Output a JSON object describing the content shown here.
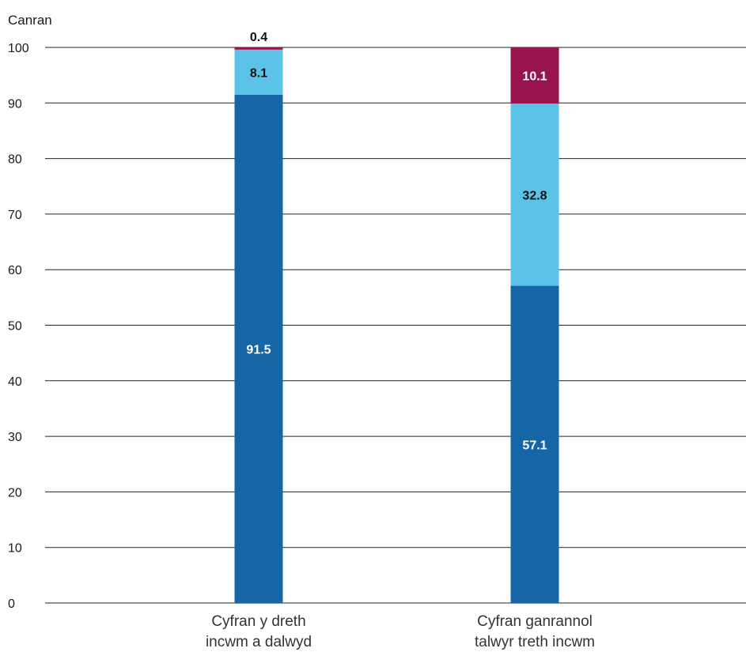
{
  "chart_data": {
    "type": "bar",
    "stacked": true,
    "ylabel": "Canran",
    "xlabel": "",
    "ylim": [
      0,
      100
    ],
    "yticks": [
      0,
      10,
      20,
      30,
      40,
      50,
      60,
      70,
      80,
      90,
      100
    ],
    "grid": true,
    "categories": [
      [
        "Cyfran y dreth",
        "incwm a dalwyd"
      ],
      [
        "Cyfran ganrannol",
        "talwyr treth incwm"
      ]
    ],
    "series": [
      {
        "values": [
          91.5,
          57.1
        ],
        "labels": [
          "91.5",
          "57.1"
        ],
        "color": "#1565a7",
        "label_color": "#ffffff"
      },
      {
        "values": [
          8.1,
          32.8
        ],
        "labels": [
          "8.1",
          "32.8"
        ],
        "color": "#5bc3e7",
        "label_color": "#111111"
      },
      {
        "values": [
          0.4,
          10.1
        ],
        "labels": [
          "0.4",
          "10.1"
        ],
        "color": "#98144f",
        "label_color": "#ffffff"
      }
    ]
  }
}
